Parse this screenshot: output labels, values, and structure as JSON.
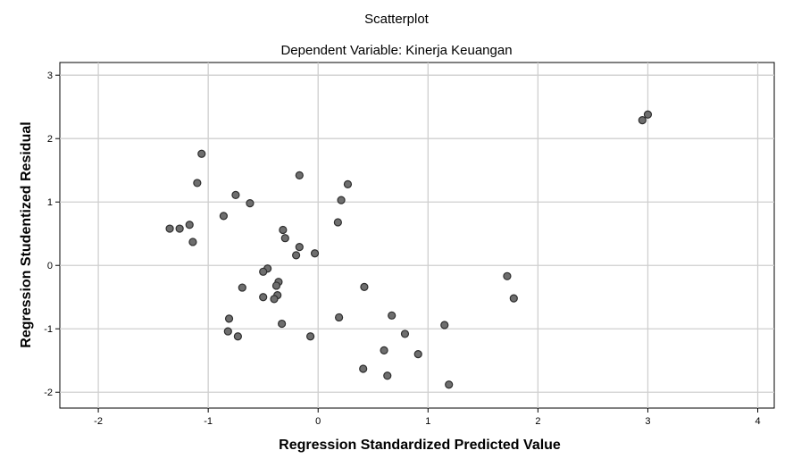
{
  "chart_data": {
    "type": "scatter",
    "title": "Scatterplot",
    "subtitle": "Dependent Variable: Kinerja Keuangan",
    "xlabel": "Regression Standardized Predicted Value",
    "ylabel": "Regression Studentized Residual",
    "xlim": [
      -2.35,
      4.15
    ],
    "ylim": [
      -2.25,
      3.2
    ],
    "xticks": [
      -2,
      -1,
      0,
      1,
      2,
      3,
      4
    ],
    "yticks": [
      3,
      2,
      1,
      0,
      -1,
      -2
    ],
    "xtick_labels": [
      "-2",
      "-1",
      "0",
      "1",
      "2",
      "3",
      "4"
    ],
    "ytick_labels": [
      "3",
      "2",
      "1",
      "0",
      "-1",
      "-2"
    ],
    "grid": true,
    "marker_color": "#6e6e6e",
    "points": [
      {
        "x": -1.06,
        "y": 1.76
      },
      {
        "x": -1.1,
        "y": 1.3
      },
      {
        "x": -0.75,
        "y": 1.11
      },
      {
        "x": -0.62,
        "y": 0.98
      },
      {
        "x": -0.86,
        "y": 0.78
      },
      {
        "x": -1.35,
        "y": 0.58
      },
      {
        "x": -1.26,
        "y": 0.58
      },
      {
        "x": -1.17,
        "y": 0.64
      },
      {
        "x": -1.14,
        "y": 0.37
      },
      {
        "x": -0.32,
        "y": 0.56
      },
      {
        "x": -0.3,
        "y": 0.43
      },
      {
        "x": -0.17,
        "y": 0.29
      },
      {
        "x": -0.2,
        "y": 0.16
      },
      {
        "x": -0.03,
        "y": 0.19
      },
      {
        "x": -0.17,
        "y": 1.42
      },
      {
        "x": 0.18,
        "y": 0.68
      },
      {
        "x": 0.21,
        "y": 1.03
      },
      {
        "x": 0.27,
        "y": 1.28
      },
      {
        "x": -0.46,
        "y": -0.05
      },
      {
        "x": -0.5,
        "y": -0.1
      },
      {
        "x": -0.36,
        "y": -0.26
      },
      {
        "x": -0.38,
        "y": -0.32
      },
      {
        "x": -0.69,
        "y": -0.35
      },
      {
        "x": -0.5,
        "y": -0.5
      },
      {
        "x": -0.37,
        "y": -0.47
      },
      {
        "x": -0.4,
        "y": -0.53
      },
      {
        "x": 0.42,
        "y": -0.34
      },
      {
        "x": -0.81,
        "y": -0.84
      },
      {
        "x": -0.33,
        "y": -0.92
      },
      {
        "x": -0.82,
        "y": -1.04
      },
      {
        "x": -0.73,
        "y": -1.12
      },
      {
        "x": -0.07,
        "y": -1.12
      },
      {
        "x": 0.19,
        "y": -0.82
      },
      {
        "x": 0.67,
        "y": -0.79
      },
      {
        "x": 0.79,
        "y": -1.08
      },
      {
        "x": 0.6,
        "y": -1.34
      },
      {
        "x": 0.91,
        "y": -1.4
      },
      {
        "x": 0.41,
        "y": -1.63
      },
      {
        "x": 0.63,
        "y": -1.74
      },
      {
        "x": 1.15,
        "y": -0.94
      },
      {
        "x": 1.19,
        "y": -1.88
      },
      {
        "x": 1.72,
        "y": -0.17
      },
      {
        "x": 1.78,
        "y": -0.52
      },
      {
        "x": 2.95,
        "y": 2.29
      },
      {
        "x": 3.0,
        "y": 2.38
      }
    ]
  }
}
